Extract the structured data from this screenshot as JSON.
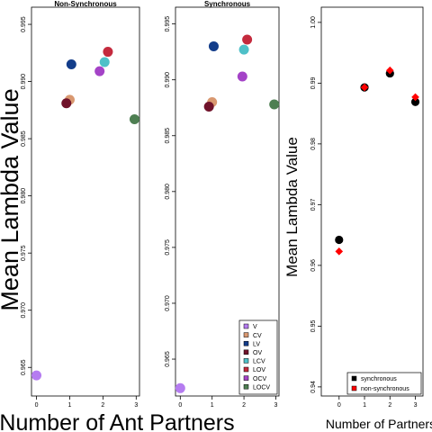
{
  "figure": {
    "ylabel_big": "Mean Lambda Value",
    "xlabel_big": "Number of Ant Partners",
    "ylabel_right": "Mean Lambda Value",
    "xlabel_right": "Number of Partners"
  },
  "chart_data": [
    {
      "type": "scatter",
      "title": "Non-Synchronous",
      "xlabel": "Number of Ant Partners",
      "ylabel": "Mean Lambda Value",
      "xlim": [
        -0.15,
        3.1
      ],
      "ylim": [
        0.9625,
        0.9965
      ],
      "xticks": [
        "0",
        "1",
        "2",
        "3"
      ],
      "yticks": [
        "0.965",
        "0.970",
        "0.975",
        "0.980",
        "0.985",
        "0.990",
        "0.995"
      ],
      "points": [
        {
          "name": "V",
          "x": 0.0,
          "y": 0.9643,
          "color": "#b57cf0"
        },
        {
          "name": "CV",
          "x": 1.0,
          "y": 0.9884,
          "color": "#d99870"
        },
        {
          "name": "LV",
          "x": 1.05,
          "y": 0.9915,
          "color": "#133d8a"
        },
        {
          "name": "OV",
          "x": 0.9,
          "y": 0.9881,
          "color": "#70122a"
        },
        {
          "name": "LCV",
          "x": 2.05,
          "y": 0.9917,
          "color": "#4ec0c8"
        },
        {
          "name": "LOV",
          "x": 2.15,
          "y": 0.9926,
          "color": "#c42a3d"
        },
        {
          "name": "OCV",
          "x": 1.9,
          "y": 0.9909,
          "color": "#a443c7"
        },
        {
          "name": "LOCV",
          "x": 2.95,
          "y": 0.9867,
          "color": "#4e7f52"
        }
      ]
    },
    {
      "type": "scatter",
      "title": "Synchronous",
      "xlabel": "Number of Ant Partners",
      "ylabel": "Mean Lambda Value",
      "xlim": [
        -0.15,
        3.1
      ],
      "ylim": [
        0.9617,
        0.9965
      ],
      "xticks": [
        "0",
        "1",
        "2",
        "3"
      ],
      "yticks": [
        "0.965",
        "0.970",
        "0.975",
        "0.980",
        "0.985",
        "0.990",
        "0.995"
      ],
      "points": [
        {
          "name": "V",
          "x": 0.0,
          "y": 0.9624,
          "color": "#b57cf0"
        },
        {
          "name": "CV",
          "x": 1.0,
          "y": 0.988,
          "color": "#d99870"
        },
        {
          "name": "LV",
          "x": 1.05,
          "y": 0.993,
          "color": "#133d8a"
        },
        {
          "name": "OV",
          "x": 0.9,
          "y": 0.9876,
          "color": "#70122a"
        },
        {
          "name": "LCV",
          "x": 2.0,
          "y": 0.9927,
          "color": "#4ec0c8"
        },
        {
          "name": "LOV",
          "x": 2.1,
          "y": 0.9936,
          "color": "#c42a3d"
        },
        {
          "name": "OCV",
          "x": 1.95,
          "y": 0.9903,
          "color": "#a443c7"
        },
        {
          "name": "LOCV",
          "x": 2.95,
          "y": 0.9878,
          "color": "#4e7f52"
        }
      ],
      "legend": {
        "position": "bottom-right",
        "entries": [
          {
            "label": "V",
            "color": "#b57cf0"
          },
          {
            "label": "CV",
            "color": "#d99870"
          },
          {
            "label": "LV",
            "color": "#133d8a"
          },
          {
            "label": "OV",
            "color": "#70122a"
          },
          {
            "label": "LCV",
            "color": "#4ec0c8"
          },
          {
            "label": "LOV",
            "color": "#c42a3d"
          },
          {
            "label": "OCV",
            "color": "#a443c7"
          },
          {
            "label": "LOCV",
            "color": "#4e7f52"
          }
        ]
      }
    },
    {
      "type": "scatter",
      "title": "",
      "xlabel": "Number of Partners",
      "ylabel": "Mean Lambda Value",
      "xlim": [
        -0.7,
        3.3
      ],
      "ylim": [
        0.9385,
        1.0025
      ],
      "xticks": [
        "0",
        "1",
        "2",
        "3"
      ],
      "yticks": [
        "0.94",
        "0.95",
        "0.96",
        "0.97",
        "0.98",
        "0.99",
        "1.00"
      ],
      "series": [
        {
          "name": "synchronous",
          "marker": "circle",
          "color": "#000000",
          "x": [
            0,
            1,
            2,
            3
          ],
          "y": [
            0.9642,
            0.9893,
            0.9916,
            0.9869
          ]
        },
        {
          "name": "non-synchronous",
          "marker": "diamond",
          "color": "#ff0000",
          "x": [
            0,
            1,
            2,
            3
          ],
          "y": [
            0.9623,
            0.9893,
            0.9921,
            0.9877
          ]
        }
      ],
      "legend": {
        "position": "bottom-right",
        "entries": [
          {
            "label": "synchronous",
            "color": "#000000"
          },
          {
            "label": "non-synchronous",
            "color": "#ff0000"
          }
        ]
      }
    }
  ]
}
